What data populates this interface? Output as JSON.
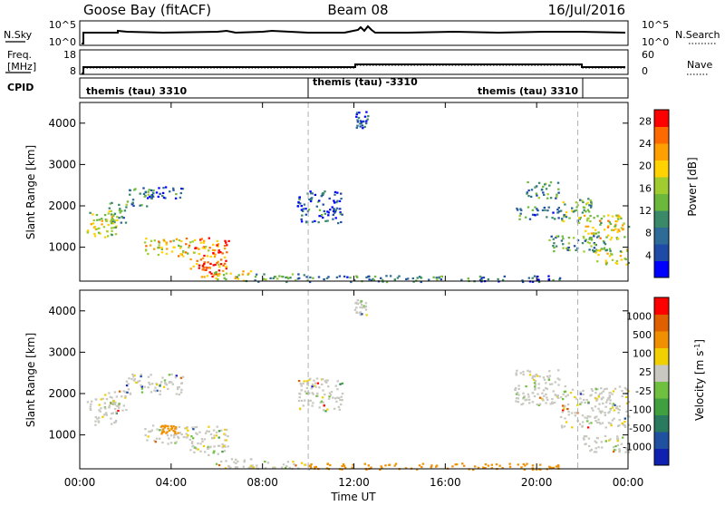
{
  "header": {
    "station": "Goose Bay (fitACF)",
    "beam": "Beam 08",
    "date": "16/Jul/2016"
  },
  "top_strips": {
    "nsky": {
      "left_label": "N.Sky",
      "left_ticks": [
        "10^5",
        "10^0"
      ],
      "right_label": "N.Search",
      "right_ticks": [
        "10^5",
        "10^0"
      ]
    },
    "freq": {
      "left_label_1": "Freq.",
      "left_label_2": "[MHz]",
      "left_ticks": [
        "18",
        "8"
      ],
      "right_label": "Nave",
      "right_ticks": [
        "60",
        "0"
      ]
    },
    "cpid": {
      "label": "CPID",
      "segments": [
        {
          "label": "themis (tau) 3310",
          "start_h": 0.0,
          "end_h": 10.0
        },
        {
          "label": "themis (tau) -3310",
          "start_h": 10.0,
          "end_h": 21.8
        },
        {
          "label": "themis (tau) 3310",
          "start_h": 21.8,
          "end_h": 24.0
        }
      ]
    }
  },
  "colors": {
    "power": [
      "#0000ff",
      "#1f4aa8",
      "#2e6b96",
      "#3a8a6a",
      "#6cb83a",
      "#a0cc30",
      "#ffd200",
      "#ffa000",
      "#ff6a00",
      "#ff0000"
    ],
    "velocity": [
      "#1020b0",
      "#2050a0",
      "#2a7a60",
      "#40a040",
      "#70c040",
      "#c8c8c0",
      "#f0d000",
      "#f09000",
      "#e06000",
      "#ff0000"
    ]
  },
  "chart_data": [
    {
      "type": "heatmap",
      "panel": "power",
      "xlabel": "",
      "ylabel": "Slant Range [km]",
      "xlim": [
        0,
        24
      ],
      "ylim": [
        180,
        4500
      ],
      "yticks": [
        1000,
        2000,
        3000,
        4000
      ],
      "colorbar": {
        "label": "Power [dB]",
        "ticks": [
          "4",
          "8",
          "12",
          "16",
          "20",
          "24",
          "28"
        ],
        "range": [
          0,
          30
        ]
      },
      "markers_h": [
        10.0,
        21.8
      ],
      "regions": [
        {
          "t0": 0.3,
          "t1": 1.6,
          "r0": 1200,
          "r1": 1900,
          "level": 0.55
        },
        {
          "t0": 1.0,
          "t1": 2.0,
          "r0": 1600,
          "r1": 2100,
          "level": 0.4
        },
        {
          "t0": 2.0,
          "t1": 3.2,
          "r0": 2000,
          "r1": 2500,
          "level": 0.3
        },
        {
          "t0": 3.0,
          "t1": 4.5,
          "r0": 2200,
          "r1": 2500,
          "level": 0.2
        },
        {
          "t0": 2.8,
          "t1": 4.8,
          "r0": 800,
          "r1": 1250,
          "level": 0.65
        },
        {
          "t0": 4.8,
          "t1": 6.5,
          "r0": 500,
          "r1": 1250,
          "level": 0.8
        },
        {
          "t0": 5.3,
          "t1": 6.2,
          "r0": 300,
          "r1": 700,
          "level": 0.9
        },
        {
          "t0": 5.8,
          "t1": 7.5,
          "r0": 200,
          "r1": 450,
          "level": 0.6
        },
        {
          "t0": 7.5,
          "t1": 10.0,
          "r0": 180,
          "r1": 380,
          "level": 0.35
        },
        {
          "t0": 9.5,
          "t1": 11.5,
          "r0": 1600,
          "r1": 2400,
          "level": 0.2
        },
        {
          "t0": 12.0,
          "t1": 12.6,
          "r0": 3900,
          "r1": 4300,
          "level": 0.15
        },
        {
          "t0": 10.0,
          "t1": 17.0,
          "r0": 180,
          "r1": 330,
          "level": 0.3
        },
        {
          "t0": 17.0,
          "t1": 21.0,
          "r0": 180,
          "r1": 330,
          "level": 0.2
        },
        {
          "t0": 19.0,
          "t1": 21.0,
          "r0": 1700,
          "r1": 2000,
          "level": 0.3
        },
        {
          "t0": 19.5,
          "t1": 21.0,
          "r0": 2200,
          "r1": 2600,
          "level": 0.35
        },
        {
          "t0": 21.0,
          "t1": 22.5,
          "r0": 1600,
          "r1": 2200,
          "level": 0.45
        },
        {
          "t0": 22.0,
          "t1": 24.0,
          "r0": 1200,
          "r1": 1800,
          "level": 0.6
        },
        {
          "t0": 22.5,
          "t1": 24.0,
          "r0": 600,
          "r1": 1000,
          "level": 0.55
        },
        {
          "t0": 20.5,
          "t1": 23.0,
          "r0": 900,
          "r1": 1300,
          "level": 0.35
        }
      ]
    },
    {
      "type": "heatmap",
      "panel": "velocity",
      "xlabel": "Time UT",
      "ylabel": "Slant Range [km]",
      "xlim": [
        0,
        24
      ],
      "ylim": [
        180,
        4500
      ],
      "yticks": [
        1000,
        2000,
        3000,
        4000
      ],
      "xticks": [
        "00:00",
        "04:00",
        "08:00",
        "12:00",
        "16:00",
        "20:00",
        "00:00"
      ],
      "colorbar": {
        "label": "Velocity [m s^-1]",
        "ticks": [
          "1000",
          "500",
          "100",
          "25",
          "-25",
          "-100",
          "-500",
          "-1000"
        ]
      },
      "markers_h": [
        10.0,
        21.8
      ],
      "regions": [
        {
          "t0": 0.3,
          "t1": 1.6,
          "r0": 1200,
          "r1": 1900,
          "level": 0.5
        },
        {
          "t0": 1.0,
          "t1": 2.0,
          "r0": 1600,
          "r1": 2100,
          "level": 0.5
        },
        {
          "t0": 2.0,
          "t1": 4.5,
          "r0": 2000,
          "r1": 2500,
          "level": 0.5
        },
        {
          "t0": 2.8,
          "t1": 4.8,
          "r0": 800,
          "r1": 1250,
          "level": 0.5
        },
        {
          "t0": 3.5,
          "t1": 4.2,
          "r0": 1050,
          "r1": 1250,
          "level": 0.7
        },
        {
          "t0": 4.8,
          "t1": 6.5,
          "r0": 500,
          "r1": 1250,
          "level": 0.5
        },
        {
          "t0": 5.8,
          "t1": 7.5,
          "r0": 200,
          "r1": 450,
          "level": 0.5
        },
        {
          "t0": 7.5,
          "t1": 10.0,
          "r0": 180,
          "r1": 380,
          "level": 0.55
        },
        {
          "t0": 9.5,
          "t1": 11.5,
          "r0": 1600,
          "r1": 2400,
          "level": 0.5
        },
        {
          "t0": 12.0,
          "t1": 12.6,
          "r0": 3900,
          "r1": 4300,
          "level": 0.5
        },
        {
          "t0": 10.0,
          "t1": 21.0,
          "r0": 180,
          "r1": 330,
          "level": 0.6
        },
        {
          "t0": 19.0,
          "t1": 21.0,
          "r0": 1700,
          "r1": 2600,
          "level": 0.5
        },
        {
          "t0": 21.0,
          "t1": 24.0,
          "r0": 1200,
          "r1": 2200,
          "level": 0.5
        },
        {
          "t0": 22.0,
          "t1": 24.0,
          "r0": 600,
          "r1": 1000,
          "level": 0.5
        }
      ]
    }
  ]
}
